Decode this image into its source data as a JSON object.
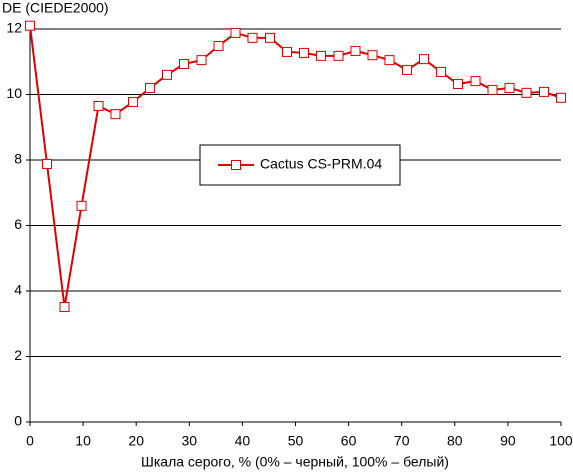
{
  "chart_data": {
    "type": "line",
    "y_label": "DE (CIEDE2000)",
    "x_label": "Шкала серого, % (0% – черный, 100% – белый)",
    "x": [
      0,
      3.2,
      6.5,
      9.7,
      12.9,
      16.1,
      19.4,
      22.6,
      25.8,
      29,
      32.3,
      35.5,
      38.7,
      41.9,
      45.2,
      48.4,
      51.6,
      54.8,
      58.1,
      61.3,
      64.5,
      67.7,
      71,
      74.2,
      77.4,
      80.6,
      83.9,
      87.1,
      90.3,
      93.5,
      96.8,
      100
    ],
    "series": [
      {
        "name": "Cactus CS-PRM.04",
        "color": "#e00000",
        "values": [
          12.1,
          7.88,
          3.51,
          6.6,
          9.65,
          9.4,
          9.77,
          10.2,
          10.6,
          10.93,
          11.05,
          11.48,
          11.88,
          11.73,
          11.73,
          11.3,
          11.27,
          11.18,
          11.18,
          11.33,
          11.2,
          11.05,
          10.75,
          11.08,
          10.69,
          10.32,
          10.41,
          10.14,
          10.2,
          10.05,
          10.08,
          9.9
        ]
      }
    ],
    "xlim": [
      0,
      100
    ],
    "xticks": [
      0,
      10,
      20,
      30,
      40,
      50,
      60,
      70,
      80,
      90,
      100
    ],
    "ylim": [
      0,
      12
    ],
    "yticks": [
      0,
      2,
      4,
      6,
      8,
      10,
      12
    ],
    "grid": true,
    "legend": "center"
  }
}
